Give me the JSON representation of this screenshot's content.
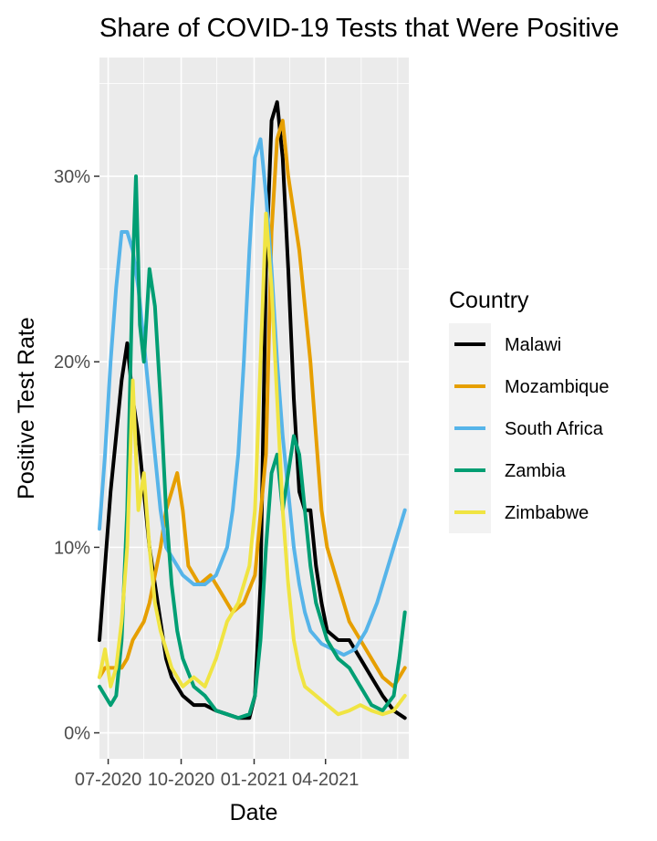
{
  "chart_data": {
    "type": "line",
    "title": "Share of COVID-19 Tests that Were Positive",
    "xlabel": "Date",
    "ylabel": "Positive Test Rate",
    "x_ticks": [
      "07-2020",
      "10-2020",
      "01-2021",
      "04-2021"
    ],
    "y_ticks": [
      "0%",
      "10%",
      "20%",
      "30%"
    ],
    "xlim": [
      "2020-06-20",
      "2021-07-15"
    ],
    "ylim": [
      -0.014,
      0.364
    ],
    "grid": true,
    "legend": {
      "title": "Country",
      "position": "right",
      "entries": [
        "Malawi",
        "Mozambique",
        "South Africa",
        "Zambia",
        "Zimbabwe"
      ]
    },
    "series": [
      {
        "name": "Malawi",
        "color": "#000000",
        "points": [
          [
            "2020-06-20",
            0.05
          ],
          [
            "2020-06-27",
            0.09
          ],
          [
            "2020-07-04",
            0.13
          ],
          [
            "2020-07-11",
            0.16
          ],
          [
            "2020-07-18",
            0.19
          ],
          [
            "2020-07-25",
            0.21
          ],
          [
            "2020-08-01",
            0.18
          ],
          [
            "2020-08-08",
            0.16
          ],
          [
            "2020-08-15",
            0.13
          ],
          [
            "2020-08-22",
            0.1
          ],
          [
            "2020-08-29",
            0.08
          ],
          [
            "2020-09-05",
            0.06
          ],
          [
            "2020-09-12",
            0.04
          ],
          [
            "2020-09-19",
            0.03
          ],
          [
            "2020-09-26",
            0.025
          ],
          [
            "2020-10-03",
            0.02
          ],
          [
            "2020-10-17",
            0.015
          ],
          [
            "2020-10-31",
            0.015
          ],
          [
            "2020-11-14",
            0.012
          ],
          [
            "2020-11-28",
            0.01
          ],
          [
            "2020-12-12",
            0.008
          ],
          [
            "2020-12-26",
            0.008
          ],
          [
            "2021-01-02",
            0.02
          ],
          [
            "2021-01-09",
            0.08
          ],
          [
            "2021-01-16",
            0.25
          ],
          [
            "2021-01-23",
            0.33
          ],
          [
            "2021-01-30",
            0.34
          ],
          [
            "2021-02-06",
            0.31
          ],
          [
            "2021-02-13",
            0.25
          ],
          [
            "2021-02-20",
            0.18
          ],
          [
            "2021-02-27",
            0.13
          ],
          [
            "2021-03-06",
            0.12
          ],
          [
            "2021-03-13",
            0.12
          ],
          [
            "2021-03-20",
            0.09
          ],
          [
            "2021-03-27",
            0.07
          ],
          [
            "2021-04-03",
            0.055
          ],
          [
            "2021-04-17",
            0.05
          ],
          [
            "2021-05-01",
            0.05
          ],
          [
            "2021-05-15",
            0.04
          ],
          [
            "2021-05-29",
            0.03
          ],
          [
            "2021-06-12",
            0.02
          ],
          [
            "2021-06-26",
            0.012
          ],
          [
            "2021-07-10",
            0.008
          ]
        ]
      },
      {
        "name": "Mozambique",
        "color": "#E69F00",
        "points": [
          [
            "2020-06-20",
            0.03
          ],
          [
            "2020-06-27",
            0.035
          ],
          [
            "2020-07-04",
            0.035
          ],
          [
            "2020-07-11",
            0.035
          ],
          [
            "2020-07-18",
            0.035
          ],
          [
            "2020-07-25",
            0.04
          ],
          [
            "2020-08-01",
            0.05
          ],
          [
            "2020-08-08",
            0.055
          ],
          [
            "2020-08-15",
            0.06
          ],
          [
            "2020-08-22",
            0.07
          ],
          [
            "2020-08-29",
            0.085
          ],
          [
            "2020-09-05",
            0.1
          ],
          [
            "2020-09-12",
            0.12
          ],
          [
            "2020-09-19",
            0.13
          ],
          [
            "2020-09-26",
            0.14
          ],
          [
            "2020-10-03",
            0.12
          ],
          [
            "2020-10-10",
            0.09
          ],
          [
            "2020-10-24",
            0.08
          ],
          [
            "2020-11-07",
            0.085
          ],
          [
            "2020-11-21",
            0.075
          ],
          [
            "2020-12-05",
            0.065
          ],
          [
            "2020-12-19",
            0.07
          ],
          [
            "2021-01-02",
            0.085
          ],
          [
            "2021-01-16",
            0.15
          ],
          [
            "2021-01-23",
            0.27
          ],
          [
            "2021-01-30",
            0.32
          ],
          [
            "2021-02-06",
            0.33
          ],
          [
            "2021-02-13",
            0.3
          ],
          [
            "2021-02-20",
            0.28
          ],
          [
            "2021-02-27",
            0.26
          ],
          [
            "2021-03-06",
            0.23
          ],
          [
            "2021-03-13",
            0.2
          ],
          [
            "2021-03-20",
            0.16
          ],
          [
            "2021-03-27",
            0.12
          ],
          [
            "2021-04-03",
            0.1
          ],
          [
            "2021-04-17",
            0.08
          ],
          [
            "2021-05-01",
            0.06
          ],
          [
            "2021-05-15",
            0.05
          ],
          [
            "2021-05-29",
            0.04
          ],
          [
            "2021-06-12",
            0.03
          ],
          [
            "2021-06-26",
            0.025
          ],
          [
            "2021-07-10",
            0.035
          ]
        ]
      },
      {
        "name": "South Africa",
        "color": "#56B4E9",
        "points": [
          [
            "2020-06-20",
            0.11
          ],
          [
            "2020-06-27",
            0.15
          ],
          [
            "2020-07-04",
            0.2
          ],
          [
            "2020-07-11",
            0.24
          ],
          [
            "2020-07-18",
            0.27
          ],
          [
            "2020-07-25",
            0.27
          ],
          [
            "2020-08-01",
            0.26
          ],
          [
            "2020-08-08",
            0.24
          ],
          [
            "2020-08-15",
            0.21
          ],
          [
            "2020-08-22",
            0.18
          ],
          [
            "2020-08-29",
            0.15
          ],
          [
            "2020-09-05",
            0.12
          ],
          [
            "2020-09-12",
            0.1
          ],
          [
            "2020-09-19",
            0.095
          ],
          [
            "2020-09-26",
            0.09
          ],
          [
            "2020-10-03",
            0.085
          ],
          [
            "2020-10-17",
            0.08
          ],
          [
            "2020-10-31",
            0.08
          ],
          [
            "2020-11-14",
            0.085
          ],
          [
            "2020-11-28",
            0.1
          ],
          [
            "2020-12-05",
            0.12
          ],
          [
            "2020-12-12",
            0.15
          ],
          [
            "2020-12-19",
            0.2
          ],
          [
            "2020-12-26",
            0.26
          ],
          [
            "2021-01-02",
            0.31
          ],
          [
            "2021-01-09",
            0.32
          ],
          [
            "2021-01-16",
            0.29
          ],
          [
            "2021-01-23",
            0.25
          ],
          [
            "2021-01-30",
            0.2
          ],
          [
            "2021-02-06",
            0.16
          ],
          [
            "2021-02-13",
            0.13
          ],
          [
            "2021-02-20",
            0.1
          ],
          [
            "2021-02-27",
            0.08
          ],
          [
            "2021-03-06",
            0.065
          ],
          [
            "2021-03-13",
            0.055
          ],
          [
            "2021-03-27",
            0.048
          ],
          [
            "2021-04-10",
            0.045
          ],
          [
            "2021-04-24",
            0.042
          ],
          [
            "2021-05-08",
            0.045
          ],
          [
            "2021-05-22",
            0.055
          ],
          [
            "2021-06-05",
            0.07
          ],
          [
            "2021-06-19",
            0.09
          ],
          [
            "2021-07-03",
            0.11
          ],
          [
            "2021-07-10",
            0.12
          ]
        ]
      },
      {
        "name": "Zambia",
        "color": "#009E73",
        "points": [
          [
            "2020-06-20",
            0.025
          ],
          [
            "2020-06-27",
            0.02
          ],
          [
            "2020-07-04",
            0.015
          ],
          [
            "2020-07-11",
            0.02
          ],
          [
            "2020-07-18",
            0.05
          ],
          [
            "2020-07-25",
            0.12
          ],
          [
            "2020-08-01",
            0.25
          ],
          [
            "2020-08-05",
            0.3
          ],
          [
            "2020-08-10",
            0.22
          ],
          [
            "2020-08-15",
            0.2
          ],
          [
            "2020-08-22",
            0.25
          ],
          [
            "2020-08-29",
            0.23
          ],
          [
            "2020-09-05",
            0.18
          ],
          [
            "2020-09-12",
            0.12
          ],
          [
            "2020-09-19",
            0.08
          ],
          [
            "2020-09-26",
            0.055
          ],
          [
            "2020-10-03",
            0.04
          ],
          [
            "2020-10-17",
            0.025
          ],
          [
            "2020-10-31",
            0.02
          ],
          [
            "2020-11-14",
            0.012
          ],
          [
            "2020-11-28",
            0.01
          ],
          [
            "2020-12-12",
            0.008
          ],
          [
            "2020-12-26",
            0.01
          ],
          [
            "2021-01-02",
            0.02
          ],
          [
            "2021-01-09",
            0.05
          ],
          [
            "2021-01-16",
            0.1
          ],
          [
            "2021-01-23",
            0.14
          ],
          [
            "2021-01-30",
            0.15
          ],
          [
            "2021-02-06",
            0.12
          ],
          [
            "2021-02-13",
            0.14
          ],
          [
            "2021-02-20",
            0.16
          ],
          [
            "2021-02-27",
            0.15
          ],
          [
            "2021-03-06",
            0.12
          ],
          [
            "2021-03-13",
            0.09
          ],
          [
            "2021-03-20",
            0.07
          ],
          [
            "2021-04-03",
            0.05
          ],
          [
            "2021-04-17",
            0.04
          ],
          [
            "2021-05-01",
            0.035
          ],
          [
            "2021-05-15",
            0.025
          ],
          [
            "2021-05-29",
            0.015
          ],
          [
            "2021-06-12",
            0.012
          ],
          [
            "2021-06-26",
            0.02
          ],
          [
            "2021-07-03",
            0.04
          ],
          [
            "2021-07-10",
            0.065
          ]
        ]
      },
      {
        "name": "Zimbabwe",
        "color": "#F0E442",
        "points": [
          [
            "2020-06-20",
            0.03
          ],
          [
            "2020-06-27",
            0.045
          ],
          [
            "2020-07-04",
            0.025
          ],
          [
            "2020-07-11",
            0.035
          ],
          [
            "2020-07-18",
            0.06
          ],
          [
            "2020-07-25",
            0.1
          ],
          [
            "2020-08-01",
            0.19
          ],
          [
            "2020-08-08",
            0.12
          ],
          [
            "2020-08-15",
            0.14
          ],
          [
            "2020-08-22",
            0.1
          ],
          [
            "2020-08-29",
            0.07
          ],
          [
            "2020-09-05",
            0.055
          ],
          [
            "2020-09-12",
            0.045
          ],
          [
            "2020-09-19",
            0.035
          ],
          [
            "2020-09-26",
            0.03
          ],
          [
            "2020-10-03",
            0.025
          ],
          [
            "2020-10-17",
            0.03
          ],
          [
            "2020-10-31",
            0.025
          ],
          [
            "2020-11-14",
            0.04
          ],
          [
            "2020-11-28",
            0.06
          ],
          [
            "2020-12-12",
            0.07
          ],
          [
            "2020-12-26",
            0.09
          ],
          [
            "2021-01-02",
            0.12
          ],
          [
            "2021-01-09",
            0.2
          ],
          [
            "2021-01-16",
            0.28
          ],
          [
            "2021-01-23",
            0.24
          ],
          [
            "2021-01-30",
            0.18
          ],
          [
            "2021-02-06",
            0.12
          ],
          [
            "2021-02-13",
            0.08
          ],
          [
            "2021-02-20",
            0.05
          ],
          [
            "2021-02-27",
            0.035
          ],
          [
            "2021-03-06",
            0.025
          ],
          [
            "2021-03-20",
            0.02
          ],
          [
            "2021-04-03",
            0.015
          ],
          [
            "2021-04-17",
            0.01
          ],
          [
            "2021-05-01",
            0.012
          ],
          [
            "2021-05-15",
            0.015
          ],
          [
            "2021-05-29",
            0.012
          ],
          [
            "2021-06-12",
            0.01
          ],
          [
            "2021-06-26",
            0.012
          ],
          [
            "2021-07-10",
            0.02
          ]
        ]
      }
    ]
  }
}
